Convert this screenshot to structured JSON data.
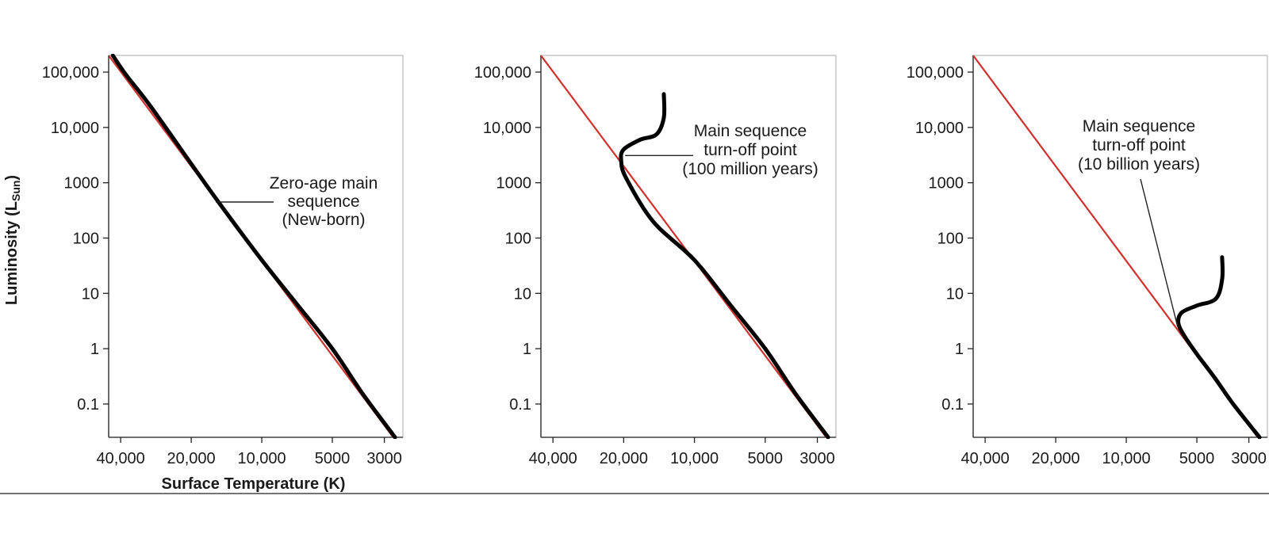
{
  "chart_data": [
    {
      "type": "line",
      "panel": "left",
      "ylabel": "Luminosity (L",
      "ylabel_sub": "Sun",
      "ylabel_close": ")",
      "xlabel": "Surface Temperature (K)",
      "x_log_scale": true,
      "x_reversed": true,
      "y_log_scale": true,
      "xlim": [
        45000,
        2500
      ],
      "ylim": [
        0.025,
        200000
      ],
      "x_ticks": [
        40000,
        20000,
        10000,
        5000,
        3000
      ],
      "x_tick_labels": [
        "40,000",
        "20,000",
        "10,000",
        "5000",
        "3000"
      ],
      "y_ticks": [
        0.1,
        1,
        10,
        100,
        1000,
        10000,
        100000
      ],
      "y_tick_labels": [
        "0.1",
        "1",
        "10",
        "100",
        "1000",
        "10,000",
        "100,000"
      ],
      "annotation": [
        "Zero-age main",
        "sequence",
        "(New-born)"
      ],
      "series": [
        {
          "role": "zams",
          "color": "#d0312d",
          "x": [
            45000,
            2750
          ],
          "y": [
            200000,
            0.025
          ]
        },
        {
          "role": "isochrone",
          "color": "#000000",
          "x": [
            43200,
            38000,
            30000,
            20000,
            15000,
            10000,
            7000,
            5000,
            3700,
            2700
          ],
          "y": [
            200000,
            90000,
            25000,
            2200,
            400,
            40,
            6,
            1,
            0.15,
            0.025
          ]
        }
      ]
    },
    {
      "type": "line",
      "panel": "middle",
      "x_log_scale": true,
      "x_reversed": true,
      "y_log_scale": true,
      "xlim": [
        45000,
        2500
      ],
      "ylim": [
        0.025,
        200000
      ],
      "x_ticks": [
        40000,
        20000,
        10000,
        5000,
        3000
      ],
      "x_tick_labels": [
        "40,000",
        "20,000",
        "10,000",
        "5000",
        "3000"
      ],
      "y_ticks": [
        0.1,
        1,
        10,
        100,
        1000,
        10000,
        100000
      ],
      "y_tick_labels": [
        "0.1",
        "1",
        "10",
        "100",
        "1000",
        "10,000",
        "100,000"
      ],
      "annotation": [
        "Main sequence",
        "turn-off point",
        "(100 million years)"
      ],
      "turnoff_point": {
        "x": 20500,
        "y": 3000
      },
      "series": [
        {
          "role": "zams",
          "color": "#d0312d",
          "x": [
            45000,
            2750
          ],
          "y": [
            200000,
            0.025
          ]
        },
        {
          "role": "isochrone",
          "color": "#000000",
          "x": [
            13500,
            13500,
            14500,
            17000,
            20000,
            20500,
            19500,
            15000,
            10000,
            7000,
            5000,
            3700,
            2700
          ],
          "y": [
            40000,
            15000,
            7500,
            6000,
            4000,
            2500,
            1200,
            200,
            40,
            6,
            1,
            0.15,
            0.025
          ]
        }
      ]
    },
    {
      "type": "line",
      "panel": "right",
      "x_log_scale": true,
      "x_reversed": true,
      "y_log_scale": true,
      "xlim": [
        45000,
        2500
      ],
      "ylim": [
        0.025,
        200000
      ],
      "x_ticks": [
        40000,
        20000,
        10000,
        5000,
        3000
      ],
      "x_tick_labels": [
        "40,000",
        "20,000",
        "10,000",
        "5000",
        "3000"
      ],
      "y_ticks": [
        0.1,
        1,
        10,
        100,
        1000,
        10000,
        100000
      ],
      "y_tick_labels": [
        "0.1",
        "1",
        "10",
        "100",
        "1000",
        "10,000",
        "100,000"
      ],
      "annotation": [
        "Main sequence",
        "turn-off point",
        "(10 billion years)"
      ],
      "turnoff_point": {
        "x": 6200,
        "y": 2.3
      },
      "series": [
        {
          "role": "zams",
          "color": "#d0312d",
          "x": [
            45000,
            2750
          ],
          "y": [
            200000,
            0.025
          ]
        },
        {
          "role": "isochrone",
          "color": "#000000",
          "x": [
            3900,
            3900,
            4150,
            5000,
            5800,
            6000,
            5700,
            5000,
            4200,
            3500,
            2700
          ],
          "y": [
            45,
            18,
            8,
            6,
            4.5,
            3,
            1.8,
            0.8,
            0.3,
            0.1,
            0.025
          ]
        }
      ]
    }
  ]
}
